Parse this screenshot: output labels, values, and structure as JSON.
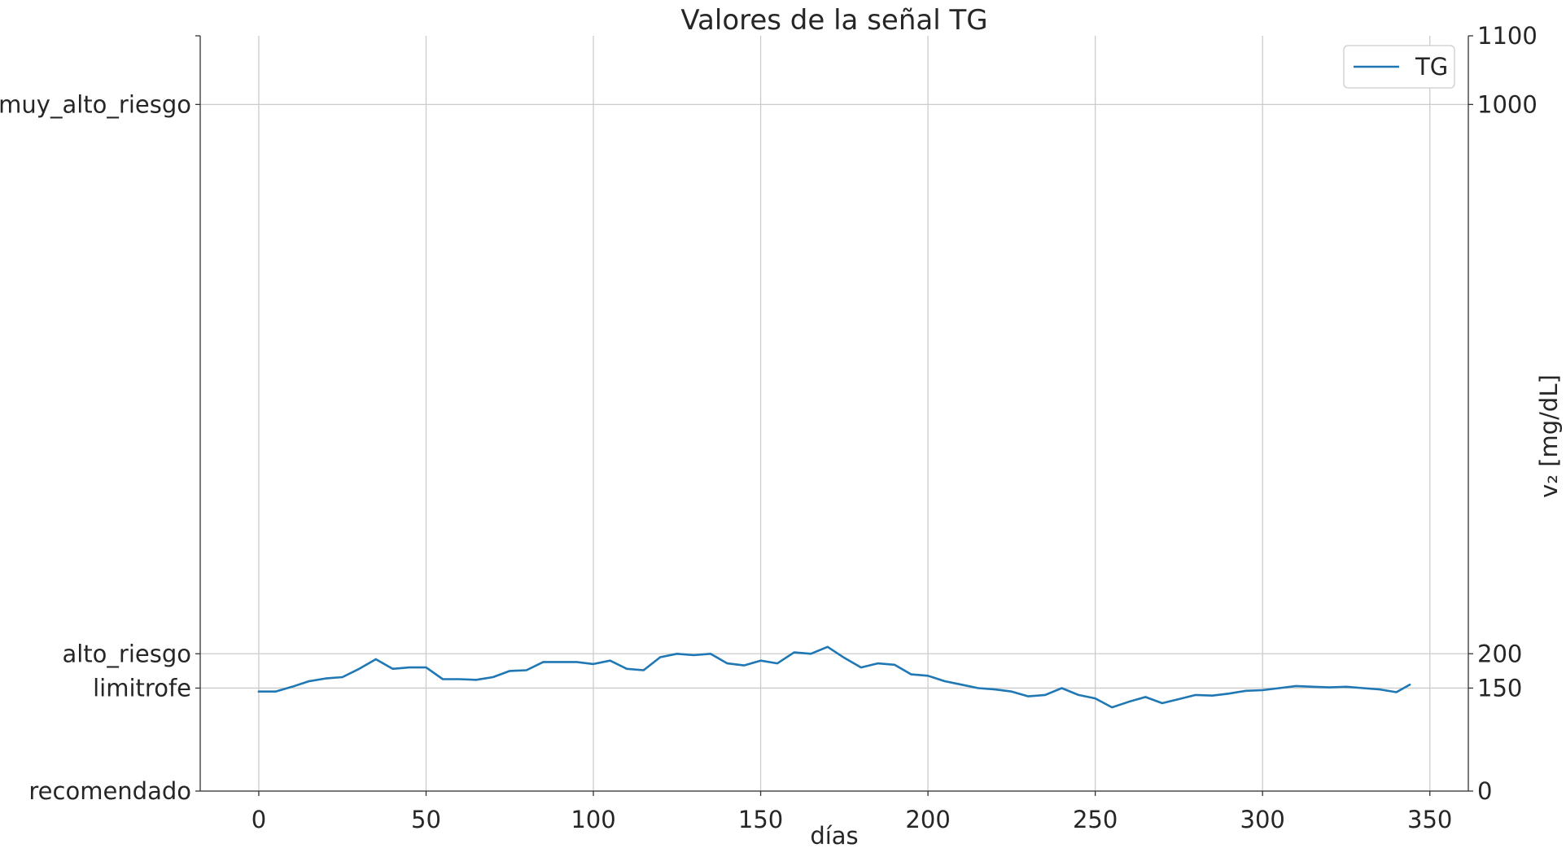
{
  "chart_data": {
    "type": "line",
    "title": "Valores de la señal TG",
    "xlabel": "días",
    "ylabel_right": "v₂ [mg/dL]",
    "xlim": [
      -17.5,
      361.5
    ],
    "ylim": [
      0,
      1100
    ],
    "xticks": [
      0,
      50,
      100,
      150,
      200,
      250,
      300,
      350
    ],
    "yticks_right": [
      0,
      150,
      200,
      1000,
      1100
    ],
    "yticks_left": [
      {
        "label": "recomendado",
        "value": 0
      },
      {
        "label": "limitrofe",
        "value": 150
      },
      {
        "label": "alto_riesgo",
        "value": 200
      },
      {
        "label": "muy_alto_riesgo",
        "value": 1000
      }
    ],
    "grid": true,
    "legend_position": "top-right",
    "series": [
      {
        "name": "TG",
        "color": "#1f77b4",
        "x": [
          0,
          5,
          10,
          15,
          20,
          25,
          30,
          35,
          40,
          45,
          50,
          55,
          60,
          65,
          70,
          75,
          80,
          85,
          90,
          95,
          100,
          105,
          110,
          115,
          120,
          125,
          130,
          135,
          140,
          145,
          150,
          155,
          160,
          165,
          170,
          175,
          180,
          185,
          190,
          195,
          200,
          205,
          210,
          215,
          220,
          225,
          230,
          235,
          240,
          245,
          250,
          255,
          260,
          265,
          270,
          275,
          280,
          285,
          290,
          295,
          300,
          305,
          310,
          315,
          320,
          325,
          330,
          335,
          340,
          344
        ],
        "y": [
          145,
          145,
          152,
          160,
          164,
          166,
          178,
          192,
          178,
          180,
          180,
          163,
          163,
          162,
          166,
          175,
          176,
          188,
          188,
          188,
          185,
          190,
          178,
          176,
          195,
          200,
          198,
          200,
          186,
          183,
          190,
          186,
          202,
          200,
          210,
          194,
          180,
          186,
          184,
          170,
          168,
          160,
          155,
          150,
          148,
          145,
          138,
          140,
          150,
          140,
          135,
          122,
          130,
          137,
          128,
          134,
          140,
          139,
          142,
          146,
          147,
          150,
          153,
          152,
          151,
          152,
          150,
          148,
          144,
          155
        ]
      }
    ]
  }
}
